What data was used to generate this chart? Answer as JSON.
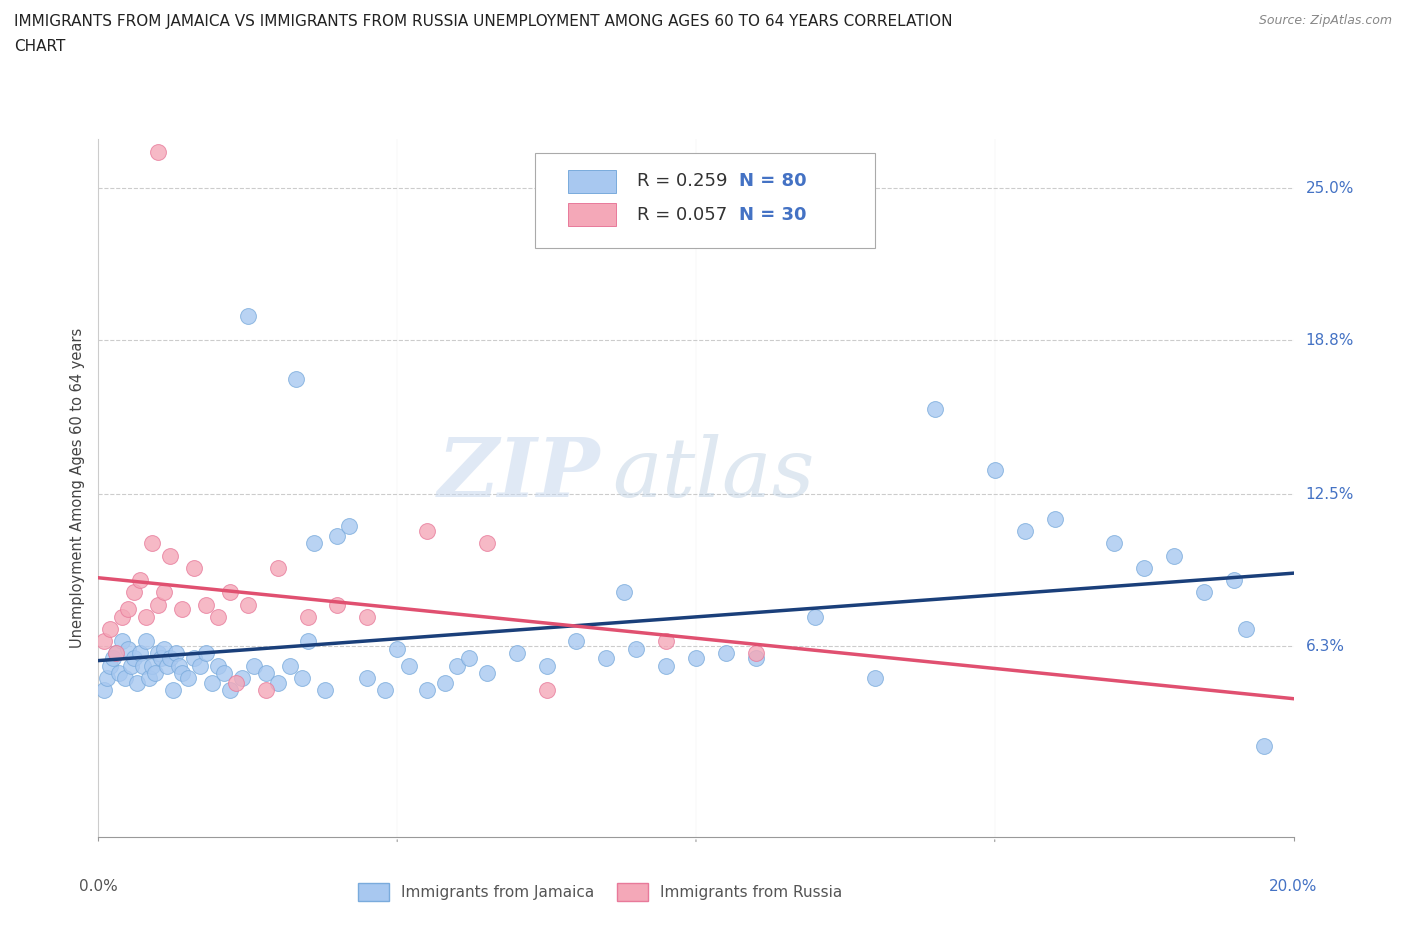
{
  "title_line1": "IMMIGRANTS FROM JAMAICA VS IMMIGRANTS FROM RUSSIA UNEMPLOYMENT AMONG AGES 60 TO 64 YEARS CORRELATION",
  "title_line2": "CHART",
  "source_text": "Source: ZipAtlas.com",
  "ylabel": "Unemployment Among Ages 60 to 64 years",
  "ytick_labels": [
    "6.3%",
    "12.5%",
    "18.8%",
    "25.0%"
  ],
  "ytick_values": [
    6.3,
    12.5,
    18.8,
    25.0
  ],
  "xlim": [
    0.0,
    20.0
  ],
  "ylim": [
    -1.5,
    27.0
  ],
  "jamaica_color": "#a8c8f0",
  "russia_color": "#f4a8b8",
  "jamaica_edge": "#7aabdc",
  "russia_edge": "#e87a9a",
  "line_jamaica": "#1a3f7a",
  "line_russia": "#e05070",
  "R_jamaica": 0.259,
  "N_jamaica": 80,
  "R_russia": 0.057,
  "N_russia": 30,
  "legend_label_jamaica": "Immigrants from Jamaica",
  "legend_label_russia": "Immigrants from Russia",
  "watermark_zip": "ZIP",
  "watermark_atlas": "atlas",
  "jamaica_x": [
    0.1,
    0.15,
    0.2,
    0.25,
    0.3,
    0.35,
    0.4,
    0.45,
    0.5,
    0.55,
    0.6,
    0.65,
    0.7,
    0.75,
    0.8,
    0.85,
    0.9,
    0.95,
    1.0,
    1.05,
    1.1,
    1.15,
    1.2,
    1.25,
    1.3,
    1.35,
    1.4,
    1.5,
    1.6,
    1.7,
    1.8,
    1.9,
    2.0,
    2.1,
    2.2,
    2.4,
    2.6,
    2.8,
    3.0,
    3.2,
    3.4,
    3.6,
    3.8,
    4.0,
    4.2,
    4.5,
    5.0,
    5.2,
    5.5,
    5.8,
    6.0,
    6.5,
    7.0,
    7.5,
    8.0,
    8.5,
    9.0,
    9.5,
    10.0,
    10.5,
    11.0,
    12.0,
    13.0,
    14.0,
    15.0,
    15.5,
    16.0,
    17.0,
    17.5,
    18.0,
    18.5,
    19.0,
    19.2,
    19.5,
    3.5,
    4.8,
    6.2,
    8.8,
    3.3,
    2.5
  ],
  "jamaica_y": [
    4.5,
    5.0,
    5.5,
    5.8,
    6.0,
    5.2,
    6.5,
    5.0,
    6.2,
    5.5,
    5.8,
    4.8,
    6.0,
    5.5,
    6.5,
    5.0,
    5.5,
    5.2,
    6.0,
    5.8,
    6.2,
    5.5,
    5.8,
    4.5,
    6.0,
    5.5,
    5.2,
    5.0,
    5.8,
    5.5,
    6.0,
    4.8,
    5.5,
    5.2,
    4.5,
    5.0,
    5.5,
    5.2,
    4.8,
    5.5,
    5.0,
    10.5,
    4.5,
    10.8,
    11.2,
    5.0,
    6.2,
    5.5,
    4.5,
    4.8,
    5.5,
    5.2,
    6.0,
    5.5,
    6.5,
    5.8,
    6.2,
    5.5,
    5.8,
    6.0,
    5.8,
    7.5,
    5.0,
    16.0,
    13.5,
    11.0,
    11.5,
    10.5,
    9.5,
    10.0,
    8.5,
    9.0,
    7.0,
    2.2,
    6.5,
    4.5,
    5.8,
    8.5,
    17.2,
    19.8
  ],
  "russia_x": [
    0.1,
    0.2,
    0.3,
    0.4,
    0.5,
    0.6,
    0.7,
    0.8,
    0.9,
    1.0,
    1.1,
    1.2,
    1.4,
    1.6,
    1.8,
    2.0,
    2.2,
    2.5,
    2.8,
    3.0,
    3.5,
    4.0,
    4.5,
    5.5,
    6.5,
    7.5,
    9.5,
    11.0,
    1.0,
    2.3
  ],
  "russia_y": [
    6.5,
    7.0,
    6.0,
    7.5,
    7.8,
    8.5,
    9.0,
    7.5,
    10.5,
    8.0,
    8.5,
    10.0,
    7.8,
    9.5,
    8.0,
    7.5,
    8.5,
    8.0,
    4.5,
    9.5,
    7.5,
    8.0,
    7.5,
    11.0,
    10.5,
    4.5,
    6.5,
    6.0,
    26.5,
    4.8
  ],
  "marker_size": 130
}
